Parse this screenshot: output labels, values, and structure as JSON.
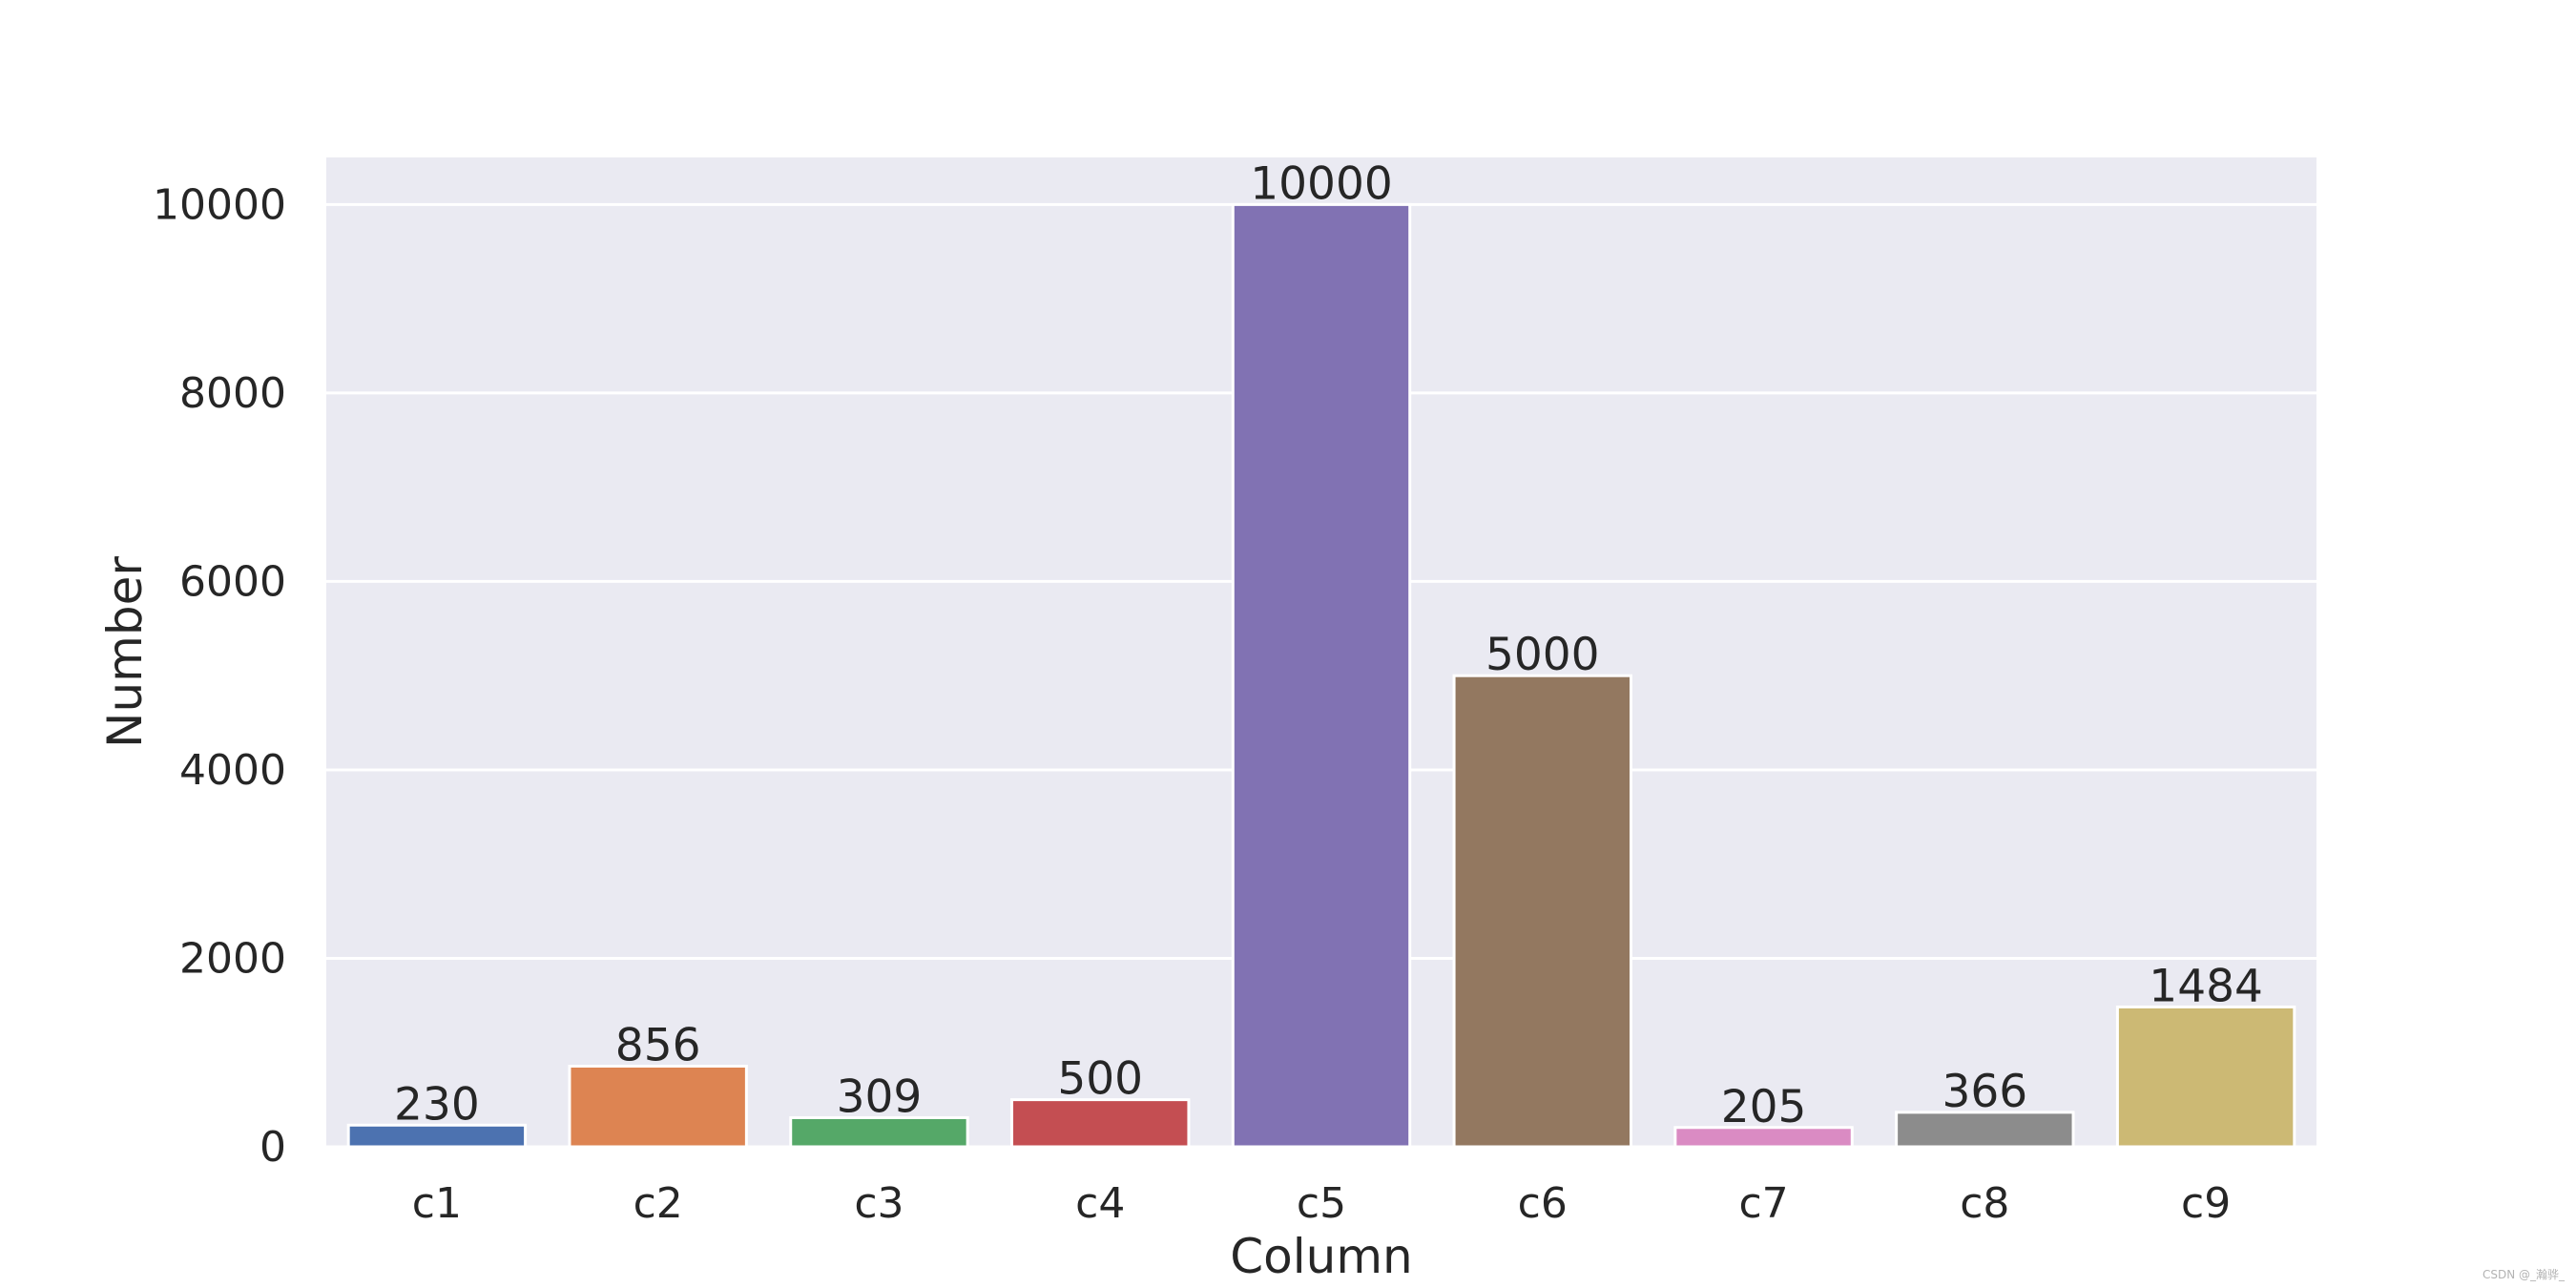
{
  "chart_data": {
    "type": "bar",
    "title": "",
    "xlabel": "Column",
    "ylabel": "Number",
    "categories": [
      "c1",
      "c2",
      "c3",
      "c4",
      "c5",
      "c6",
      "c7",
      "c8",
      "c9"
    ],
    "values": [
      230,
      856,
      309,
      500,
      10000,
      5000,
      205,
      366,
      1484
    ],
    "data_labels": [
      "230",
      "856",
      "309",
      "500",
      "10000",
      "5000",
      "205",
      "366",
      "1484"
    ],
    "yticks": [
      0,
      2000,
      4000,
      6000,
      8000,
      10000
    ],
    "ylim": [
      0,
      10500
    ],
    "grid": true,
    "legend": "none",
    "colors": [
      "#4c72b0",
      "#dd8452",
      "#55a868",
      "#c44e52",
      "#8172b3",
      "#937860",
      "#da8bc3",
      "#8c8c8c",
      "#ccb974"
    ],
    "background_color": "#eaeaf2",
    "grid_color": "#ffffff"
  },
  "watermark": "CSDN @_瀚骅_"
}
